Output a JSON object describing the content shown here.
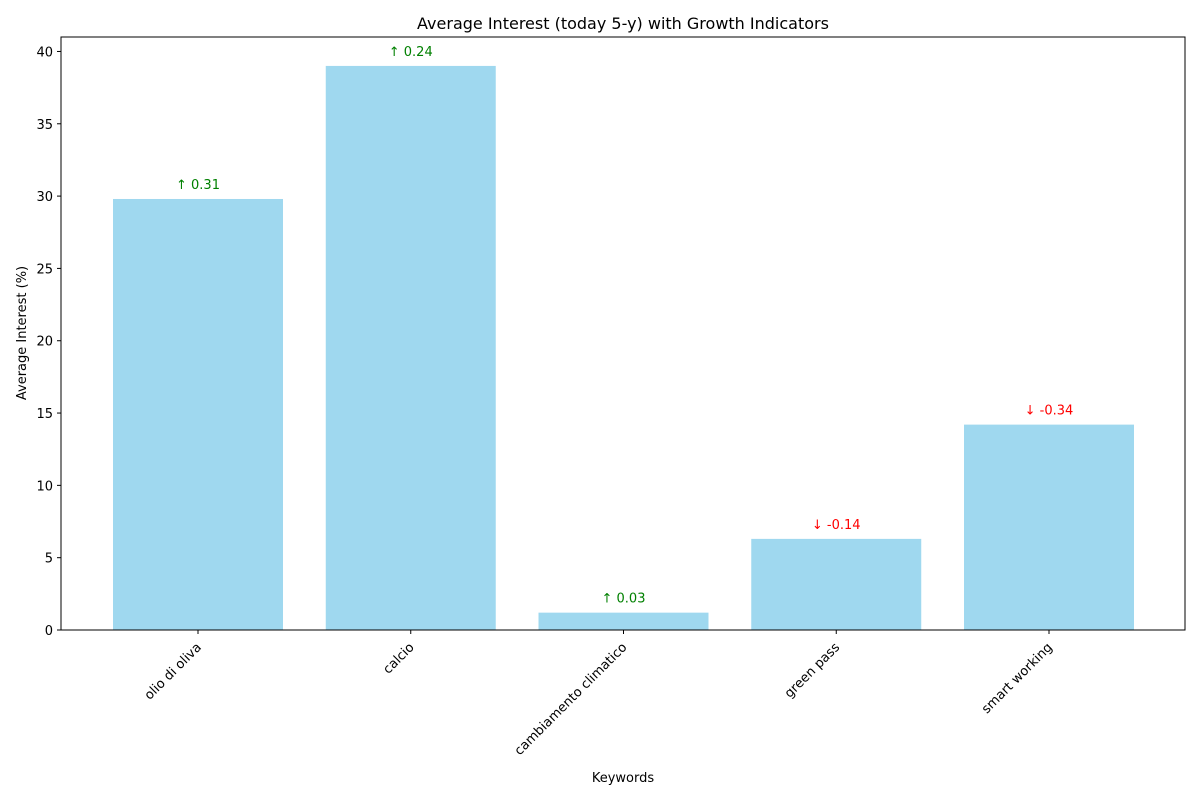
{
  "chart_data": {
    "type": "bar",
    "title": "Average Interest (today 5-y) with Growth Indicators",
    "xlabel": "Keywords",
    "ylabel": "Average Interest (%)",
    "ylim": [
      0,
      41
    ],
    "yticks": [
      0,
      5,
      10,
      15,
      20,
      25,
      30,
      35,
      40
    ],
    "grid": false,
    "categories": [
      "olio di oliva",
      "calcio",
      "cambiamento climatico",
      "green pass",
      "smart working"
    ],
    "values": [
      29.8,
      39.0,
      1.2,
      6.3,
      14.2
    ],
    "growth_labels": [
      "↑ 0.31",
      "↑ 0.24",
      "↑ 0.03",
      "↓ -0.14",
      "↓ -0.34"
    ],
    "bar_color": "#87ceeb",
    "growth_up_color": "#008000",
    "growth_down_color": "#ff0000"
  }
}
